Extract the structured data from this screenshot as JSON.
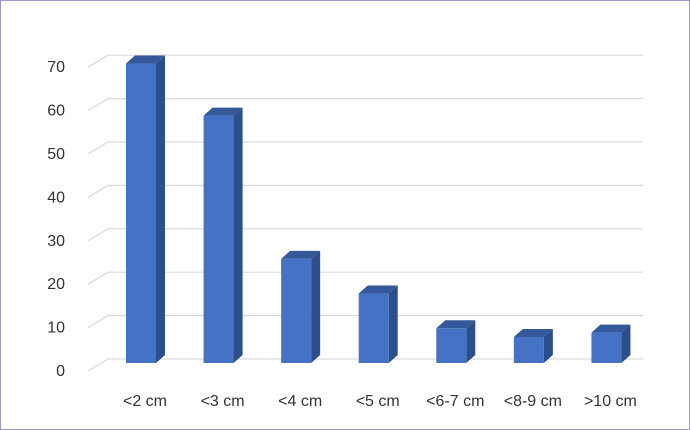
{
  "chart_data": {
    "type": "bar",
    "style": "3d-column",
    "categories": [
      "<2 cm",
      "<3 cm",
      "<4 cm",
      "<5 cm",
      "<6-7 cm",
      "<8-9 cm",
      ">10 cm"
    ],
    "values": [
      69,
      57,
      24,
      16,
      8,
      6,
      7
    ],
    "title": "",
    "xlabel": "",
    "ylabel": "",
    "ylim": [
      0,
      70
    ],
    "yticks": [
      0,
      10,
      20,
      30,
      40,
      50,
      60,
      70
    ],
    "grid": true,
    "legend": "none",
    "colors": {
      "front": "#4472c4",
      "side": "#2b4e8c",
      "top": "#35589a",
      "grid": "#d9d9d9",
      "frame": "#9a9ac8"
    }
  }
}
